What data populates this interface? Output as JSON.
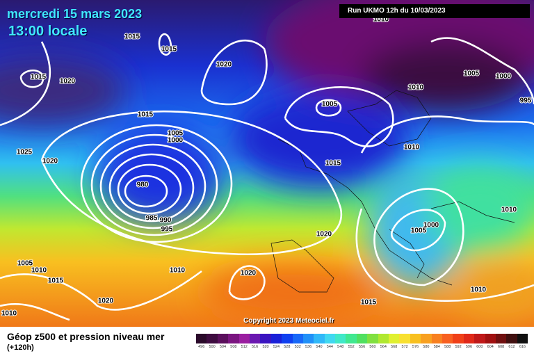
{
  "header": {
    "date": "mercredi 15 mars 2023",
    "time": "13:00 locale",
    "run": "Run UKMO 12h du 10/03/2023"
  },
  "map": {
    "isobar_labels": [
      "1015",
      "1015",
      "1015",
      "1020",
      "1020",
      "1010",
      "1005",
      "1000",
      "1010",
      "995",
      "1005",
      "1015",
      "1005",
      "1000",
      "1025",
      "1020",
      "1015",
      "980",
      "1010",
      "1010",
      "1000",
      "1005",
      "985",
      "990",
      "995",
      "1020",
      "1005",
      "1010",
      "1015",
      "1010",
      "1020",
      "1015",
      "1020",
      "1010",
      "1010"
    ],
    "copyright": "Copyright 2023 Meteociel.fr"
  },
  "footer": {
    "title": "Géop z500 et pression niveau mer",
    "lead": "(+120h)",
    "legend": {
      "values": [
        496,
        500,
        504,
        508,
        512,
        516,
        520,
        524,
        528,
        532,
        536,
        540,
        544,
        548,
        552,
        556,
        560,
        564,
        568,
        572,
        576,
        580,
        584,
        588,
        592,
        596,
        600,
        604,
        608,
        612,
        616
      ],
      "colors": [
        "#2a0a2a",
        "#3e0c40",
        "#5a0f5c",
        "#7a1580",
        "#9a1ea0",
        "#6a18b0",
        "#3a14c0",
        "#1a20d8",
        "#1040f0",
        "#1868f8",
        "#2090f8",
        "#30b8f8",
        "#40d8f0",
        "#40e8c8",
        "#40e890",
        "#50e060",
        "#80e040",
        "#b0e830",
        "#e0f030",
        "#f8e030",
        "#f8c020",
        "#f8a020",
        "#f88020",
        "#f86020",
        "#f04018",
        "#e02818",
        "#c01818",
        "#a01010",
        "#701010",
        "#401010",
        "#101010"
      ]
    }
  }
}
